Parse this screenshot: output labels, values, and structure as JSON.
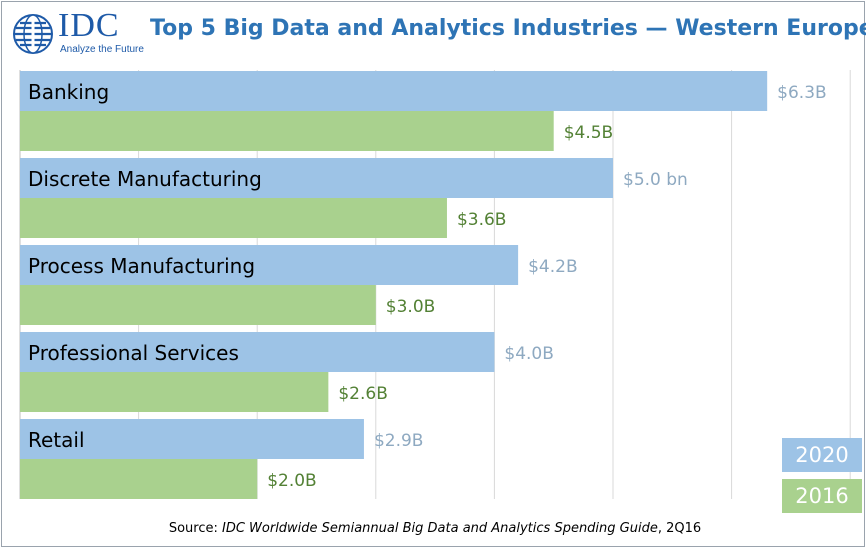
{
  "logo": {
    "text": "IDC",
    "tagline": "Analyze the Future"
  },
  "title": "Top 5 Big Data and Analytics Industries — Western Europe",
  "source": {
    "prefix": "Source: ",
    "publication": "IDC Worldwide Semiannual Big Data and Analytics Spending Guide",
    "suffix": ", 2Q16"
  },
  "legend": [
    {
      "label": "2020",
      "color": "#9dc3e6"
    },
    {
      "label": "2016",
      "color": "#a9d18e"
    }
  ],
  "chart_data": {
    "type": "bar",
    "orientation": "horizontal",
    "title": "Top 5 Big Data and Analytics Industries — Western Europe",
    "categories": [
      "Banking",
      "Discrete Manufacturing",
      "Process Manufacturing",
      "Professional Services",
      "Retail"
    ],
    "series": [
      {
        "name": "2020",
        "values": [
          6.3,
          5.0,
          4.2,
          4.0,
          2.9
        ],
        "labels": [
          "$6.3B",
          "$5.0 bn",
          "$4.2B",
          "$4.0B",
          "$2.9B"
        ],
        "color": "#9dc3e6",
        "label_color": "#8ea9c1"
      },
      {
        "name": "2016",
        "values": [
          4.5,
          3.6,
          3.0,
          2.6,
          2.0
        ],
        "labels": [
          "$4.5B",
          "$3.6B",
          "$3.0B",
          "$2.6B",
          "$2.0B"
        ],
        "color": "#a9d18e",
        "label_color": "#538135"
      }
    ],
    "xlim": [
      0,
      7
    ],
    "grid": true,
    "legend_position": "bottom-right"
  }
}
